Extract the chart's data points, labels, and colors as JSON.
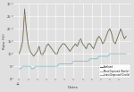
{
  "title": "",
  "xlabel": "Dates",
  "ylabel": "Rate (%)",
  "background_color": "#e0e0e0",
  "grid_color": "#ffffff",
  "series": {
    "Scotland": {
      "color": "#666666",
      "linewidth": 0.5
    },
    "Most Deprived (Decile)": {
      "color": "#c8b87a",
      "linewidth": 0.5
    },
    "Least Deprived (Decile)": {
      "color": "#7ab8b8",
      "linewidth": 0.5
    }
  },
  "scotland": [
    10,
    12,
    15,
    28,
    20,
    14,
    11,
    10,
    9,
    10,
    11,
    13,
    10,
    10,
    11,
    13,
    14,
    13,
    12,
    11,
    10,
    10,
    12,
    13,
    14,
    14,
    13,
    12,
    11,
    12,
    13,
    14,
    13,
    15,
    16,
    14,
    13,
    12,
    14,
    14,
    13,
    12,
    14,
    16,
    17,
    16,
    14,
    15,
    17,
    19,
    20,
    18,
    15,
    14,
    16,
    18,
    20,
    18,
    16,
    17
  ],
  "simd": [
    10,
    13,
    16,
    25,
    18,
    13,
    11,
    10,
    9,
    10,
    11,
    13,
    10,
    9,
    11,
    13,
    14,
    13,
    12,
    11,
    10,
    10,
    12,
    13,
    14,
    14,
    13,
    12,
    11,
    12,
    13,
    14,
    13,
    14,
    15,
    14,
    13,
    12,
    14,
    14,
    13,
    12,
    14,
    15,
    17,
    16,
    14,
    15,
    17,
    19,
    20,
    18,
    15,
    14,
    16,
    18,
    20,
    18,
    16,
    17
  ],
  "least": [
    4,
    4,
    5,
    5,
    5,
    5,
    5,
    4,
    4,
    5,
    5,
    5,
    5,
    5,
    5,
    5,
    5,
    5,
    5,
    5,
    5,
    5,
    6,
    6,
    6,
    6,
    6,
    6,
    6,
    6,
    7,
    7,
    7,
    7,
    7,
    7,
    7,
    7,
    7,
    8,
    8,
    8,
    8,
    8,
    9,
    9,
    9,
    9,
    9,
    9,
    10,
    10,
    10,
    10,
    10,
    10,
    10,
    10,
    10,
    10
  ],
  "n_points": 60,
  "ylim": [
    0,
    30
  ],
  "yticks": [
    0,
    5,
    10,
    15,
    20,
    25,
    30
  ],
  "xtick_step": 5,
  "figsize": [
    1.5,
    1.03
  ],
  "dpi": 100
}
